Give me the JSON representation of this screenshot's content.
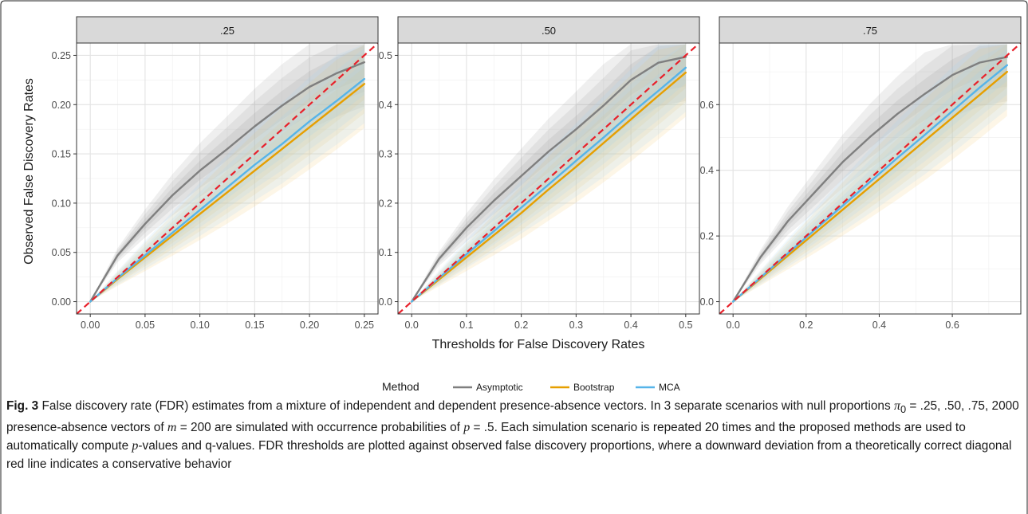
{
  "chart_data": {
    "type": "line",
    "xlabel": "Thresholds for False Discovery Rates",
    "ylabel": "Observed False Discovery Rates",
    "legend": {
      "title": "Method",
      "position": "bottom",
      "entries": [
        {
          "name": "Asymptotic",
          "color": "#7f7f7f"
        },
        {
          "name": "Bootstrap",
          "color": "#e69f00"
        },
        {
          "name": "MCA",
          "color": "#56b4e9"
        }
      ]
    },
    "reference_line": {
      "type": "diagonal",
      "slope": 1,
      "color": "#e8202a",
      "style": "dashed"
    },
    "panels": [
      {
        "strip": ".25",
        "xlim": [
          -0.0125,
          0.2625
        ],
        "ylim": [
          -0.0125,
          0.2625
        ],
        "xticks": [
          0.0,
          0.05,
          0.1,
          0.15,
          0.2,
          0.25
        ],
        "xtick_labels": [
          "0.00",
          "0.05",
          "0.10",
          "0.15",
          "0.20",
          "0.25"
        ],
        "yticks": [
          0.0,
          0.05,
          0.1,
          0.15,
          0.2,
          0.25
        ],
        "ytick_labels": [
          "0.00",
          "0.05",
          "0.10",
          "0.15",
          "0.20",
          "0.25"
        ],
        "x": [
          0,
          0.025,
          0.05,
          0.075,
          0.1,
          0.125,
          0.15,
          0.175,
          0.2,
          0.225,
          0.25
        ],
        "series": [
          {
            "name": "Asymptotic",
            "values": [
              0,
              0.047,
              0.079,
              0.108,
              0.133,
              0.155,
              0.178,
              0.199,
              0.218,
              0.232,
              0.243
            ]
          },
          {
            "name": "Bootstrap",
            "values": [
              0,
              0.023,
              0.045,
              0.067,
              0.089,
              0.111,
              0.133,
              0.155,
              0.177,
              0.199,
              0.221
            ]
          },
          {
            "name": "MCA",
            "values": [
              0,
              0.024,
              0.047,
              0.07,
              0.093,
              0.116,
              0.139,
              0.16,
              0.183,
              0.204,
              0.226
            ]
          }
        ]
      },
      {
        "strip": ".50",
        "xlim": [
          -0.025,
          0.525
        ],
        "ylim": [
          -0.025,
          0.525
        ],
        "xticks": [
          0.0,
          0.1,
          0.2,
          0.3,
          0.4,
          0.5
        ],
        "xtick_labels": [
          "0.0",
          "0.1",
          "0.2",
          "0.3",
          "0.4",
          "0.5"
        ],
        "yticks": [
          0.0,
          0.1,
          0.2,
          0.3,
          0.4,
          0.5
        ],
        "ytick_labels": [
          "0.0",
          "0.1",
          "0.2",
          "0.3",
          "0.4",
          "0.5"
        ],
        "x": [
          0,
          0.05,
          0.1,
          0.15,
          0.2,
          0.25,
          0.3,
          0.35,
          0.4,
          0.45,
          0.5
        ],
        "series": [
          {
            "name": "Asymptotic",
            "values": [
              0,
              0.087,
              0.15,
              0.205,
              0.255,
              0.305,
              0.35,
              0.398,
              0.45,
              0.485,
              0.497
            ]
          },
          {
            "name": "Bootstrap",
            "values": [
              0,
              0.045,
              0.09,
              0.135,
              0.18,
              0.228,
              0.274,
              0.322,
              0.37,
              0.418,
              0.465
            ]
          },
          {
            "name": "MCA",
            "values": [
              0,
              0.048,
              0.096,
              0.143,
              0.191,
              0.238,
              0.286,
              0.333,
              0.382,
              0.428,
              0.475
            ]
          }
        ]
      },
      {
        "strip": ".75",
        "xlim": [
          -0.0375,
          0.7875
        ],
        "ylim": [
          -0.0375,
          0.7875
        ],
        "xticks": [
          0.0,
          0.2,
          0.4,
          0.6
        ],
        "xtick_labels": [
          "0.0",
          "0.2",
          "0.4",
          "0.6"
        ],
        "yticks": [
          0.0,
          0.2,
          0.4,
          0.6
        ],
        "ytick_labels": [
          "0.0",
          "0.2",
          "0.4",
          "0.6"
        ],
        "x": [
          0,
          0.075,
          0.15,
          0.225,
          0.3,
          0.375,
          0.45,
          0.525,
          0.6,
          0.675,
          0.75
        ],
        "series": [
          {
            "name": "Asymptotic",
            "values": [
              0,
              0.135,
              0.245,
              0.335,
              0.425,
              0.502,
              0.572,
              0.633,
              0.69,
              0.728,
              0.745
            ]
          },
          {
            "name": "Bootstrap",
            "values": [
              0,
              0.07,
              0.14,
              0.21,
              0.28,
              0.35,
              0.42,
              0.49,
              0.56,
              0.63,
              0.7
            ]
          },
          {
            "name": "MCA",
            "values": [
              0,
              0.073,
              0.147,
              0.22,
              0.292,
              0.365,
              0.438,
              0.508,
              0.58,
              0.652,
              0.72
            ]
          }
        ]
      }
    ]
  },
  "caption": {
    "label": "Fig. 3",
    "text_1": " False discovery rate (FDR) estimates from a mixture of independent and dependent presence-absence vectors. In 3 separate scenarios with null proportions ",
    "pi0": "π",
    "pi0_sub": "0",
    "text_2": " = .25, .50, .75, 2000 presence-absence vectors of ",
    "m": "m",
    "text_3": " = 200 are simulated with occurrence probabilities of ",
    "p": "p",
    "text_4": " = .5. Each simulation scenario is repeated 20 times and the proposed methods are used to automatically compute ",
    "p2": "p",
    "text_5": "-values and q-values. FDR thresholds are plotted against observed false discovery proportions, where a downward deviation from a theoretically correct diagonal red line indicates a conservative behavior"
  }
}
